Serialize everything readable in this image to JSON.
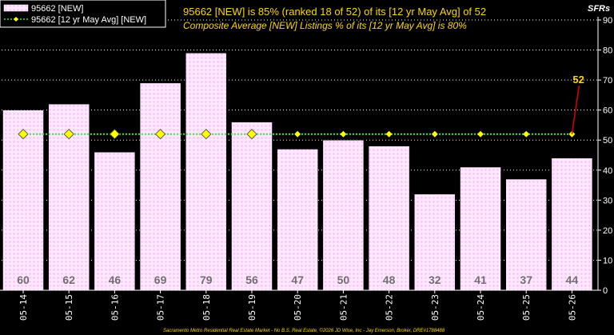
{
  "chart_data": {
    "type": "bar",
    "title": "95662 [NEW] is 85% (ranked 18 of 52)  of its [12 yr May Avg] of 52",
    "subtitle": "Composite Average [NEW] Listings % of its [12 yr May Avg] is 80%",
    "unit_label": "SFRs",
    "categories": [
      "05-14",
      "05-15",
      "05-16",
      "05-17",
      "05-18",
      "05-19",
      "05-20",
      "05-21",
      "05-22",
      "05-23",
      "05-24",
      "05-25",
      "05-26"
    ],
    "series": [
      {
        "name": "95662 [NEW]",
        "values": [
          60,
          62,
          46,
          69,
          79,
          56,
          47,
          50,
          48,
          32,
          41,
          37,
          44
        ]
      },
      {
        "name": "95662 [12 yr May Avg] [NEW]",
        "values": [
          52,
          52,
          52,
          52,
          52,
          52,
          52,
          52,
          52,
          52,
          52,
          52,
          52
        ]
      }
    ],
    "data_labels": [
      "60",
      "62",
      "46",
      "69",
      "79",
      "56",
      "47",
      "50",
      "48",
      "32",
      "41",
      "37",
      "44"
    ],
    "avg_callout": "52",
    "yticks": [
      "0",
      "10",
      "20",
      "30",
      "40",
      "50",
      "60",
      "70",
      "80",
      "90"
    ],
    "ylim": [
      0,
      90
    ],
    "grid": true,
    "legend_position": "top-left",
    "footer": "Sacramento Metro Residential Real Estate Market - No B.S. Real Estate, ©2026 JD Wise, Inc - Jay Emerson, Broker, DRE#1788488",
    "colors": {
      "background": "#000000",
      "bar_fill": "#ffe8ff",
      "bar_pattern": "#f5b6f5",
      "avg_line": "#33ee33",
      "avg_marker": "#ffff00",
      "title": "#ffd700",
      "callout_line": "#dd0000",
      "grid": "#ffffff"
    }
  }
}
